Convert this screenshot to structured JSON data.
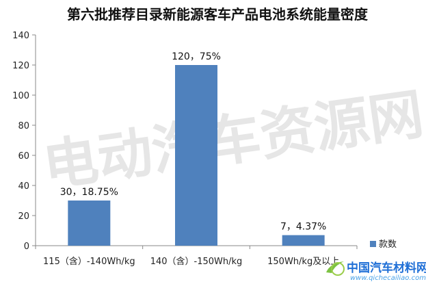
{
  "chart_data": {
    "type": "bar",
    "title": "第六批推荐目录新能源客车产品电池系统能量密度",
    "categories": [
      "115（含）-140Wh/kg",
      "140（含）-150Wh/kg",
      "150Wh/kg及以上"
    ],
    "series": [
      {
        "name": "款数",
        "values": [
          30,
          120,
          7
        ],
        "color": "#4f81bd"
      }
    ],
    "data_labels": [
      "30，18.75%",
      "120，75%",
      "7，4.37%"
    ],
    "ylim": [
      0,
      140
    ],
    "yticks": [
      0,
      20,
      40,
      60,
      80,
      100,
      120,
      140
    ],
    "xlabel": "",
    "ylabel": "",
    "grid": false,
    "legend_position": "bottom-right"
  },
  "watermark": {
    "text": "电动汽车资源网"
  },
  "logo": {
    "text": "中国汽车材料网",
    "url": "www.qichecailiao.com"
  }
}
